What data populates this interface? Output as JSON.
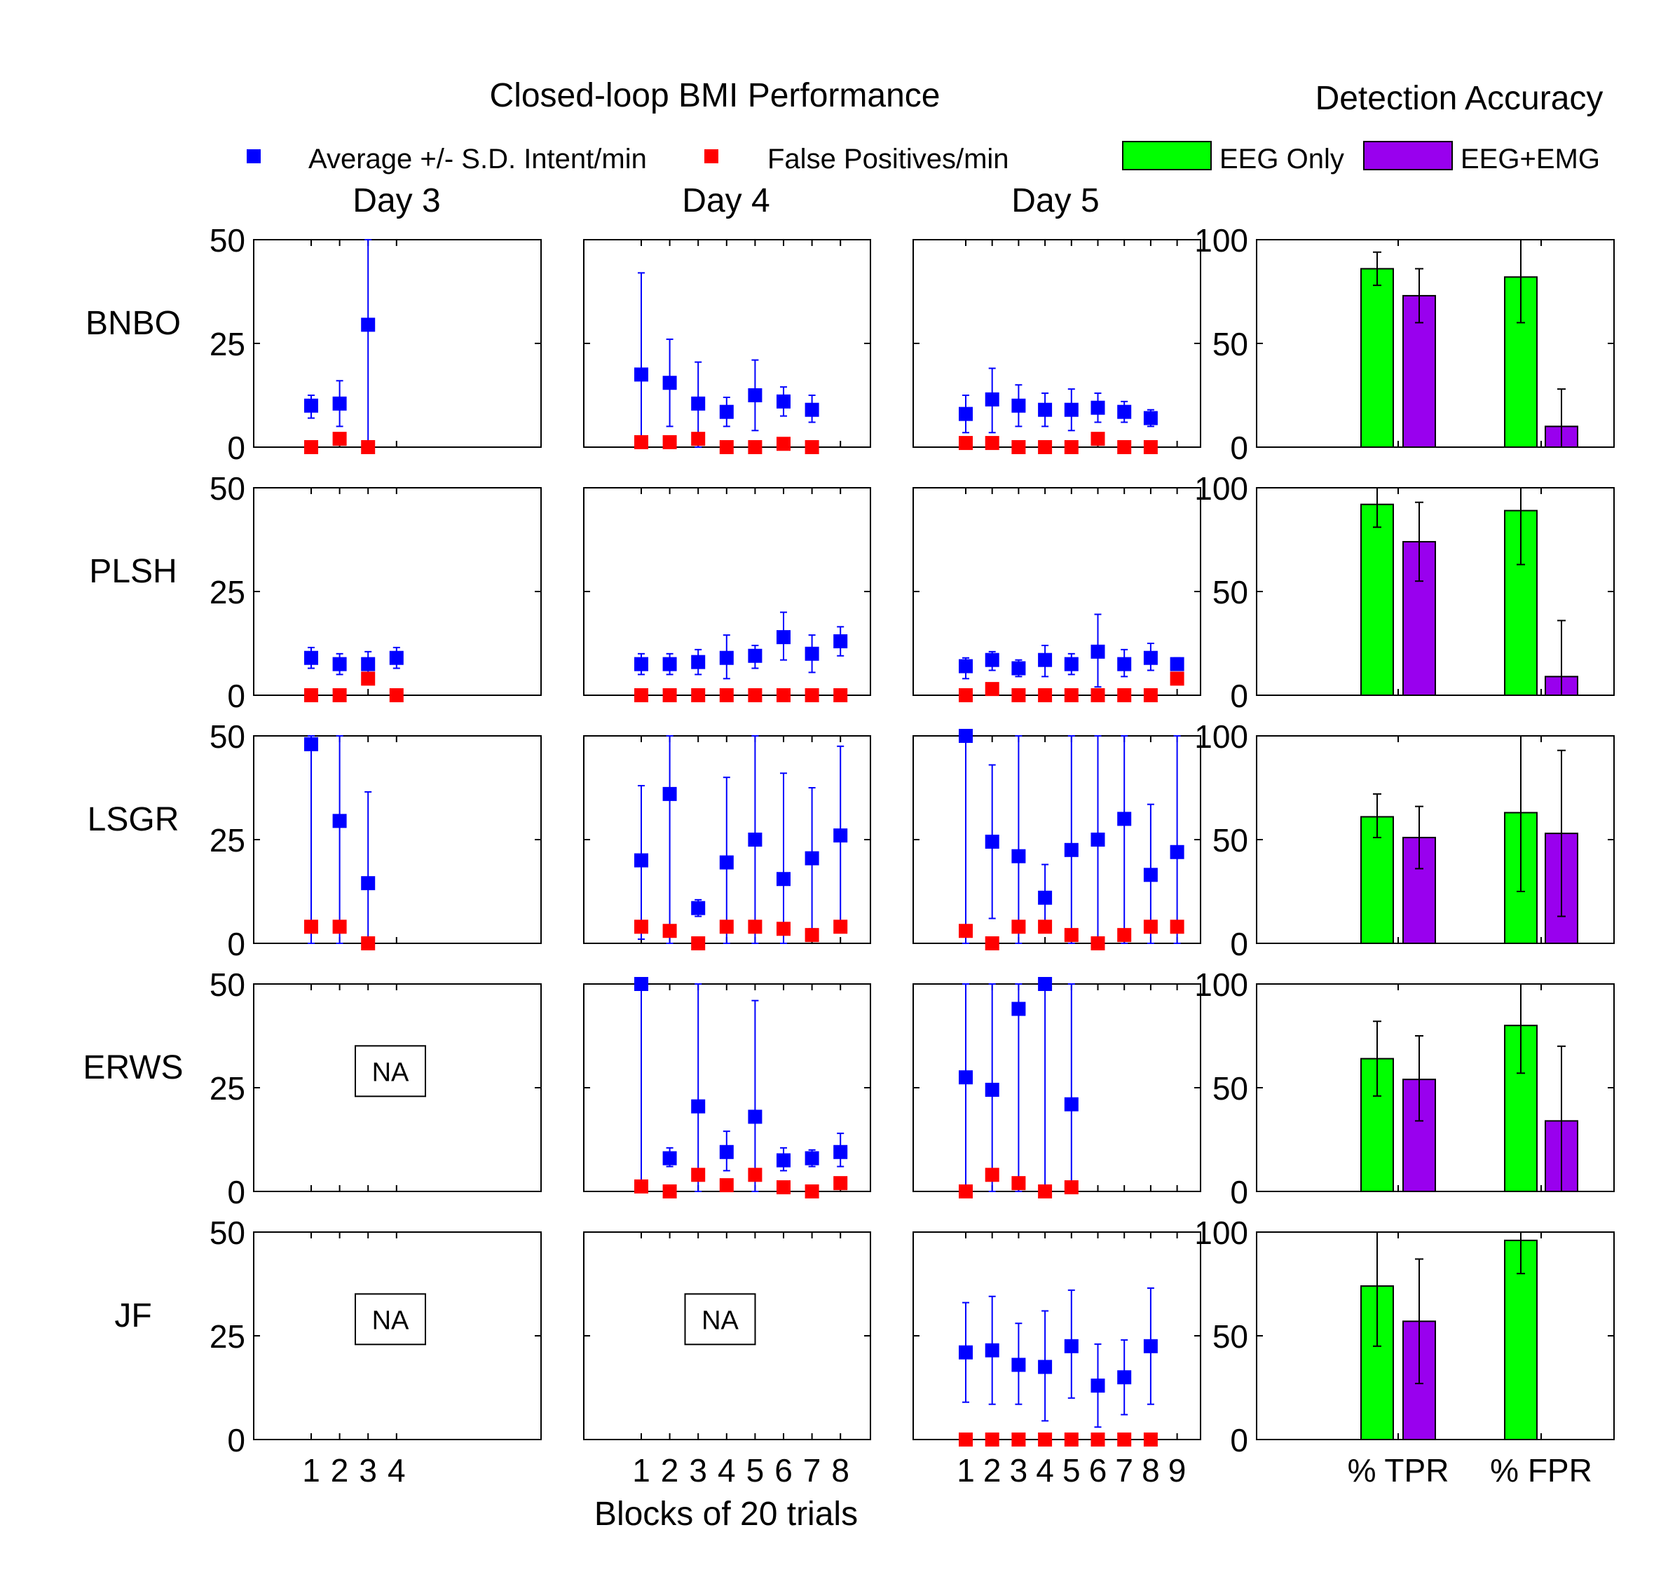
{
  "chart_data": {
    "type": "scatter",
    "title": "Closed-loop BMI Performance",
    "right_title": "Detection Accuracy",
    "legend": {
      "intent": {
        "label": "Average +/- S.D. Intent/min",
        "color": "#0000ff"
      },
      "fp": {
        "label": "False Positives/min",
        "color": "#ff0000"
      },
      "eeg": {
        "label": "EEG Only",
        "color": "#00ff00"
      },
      "eegemg": {
        "label": "EEG+EMG",
        "color": "#9900ee"
      }
    },
    "days": [
      "Day 3",
      "Day 4",
      "Day 5"
    ],
    "subjects": [
      "BNBO",
      "PLSH",
      "LSGR",
      "ERWS",
      "JF"
    ],
    "ylim": [
      0,
      50
    ],
    "yticks": [
      0,
      25,
      50
    ],
    "acc_ylim": [
      0,
      100
    ],
    "acc_yticks": [
      0,
      50,
      100
    ],
    "xlabel": "Blocks of 20 trials",
    "xtick_labels": [
      [
        "1",
        "2",
        "3",
        "4"
      ],
      [
        "1",
        "2",
        "3",
        "4",
        "5",
        "6",
        "7",
        "8"
      ],
      [
        "1",
        "2",
        "3",
        "4",
        "5",
        "6",
        "7",
        "8",
        "9"
      ]
    ],
    "acc_categories": [
      "% TPR",
      "% FPR"
    ],
    "na_label": "NA",
    "panels": [
      [
        {
          "na": false,
          "intent": [
            [
              1,
              10,
              7,
              12.5
            ],
            [
              2,
              10.5,
              5,
              16
            ],
            [
              3,
              29.5,
              0,
              50
            ]
          ],
          "fp": [
            [
              1,
              0
            ],
            [
              2,
              2
            ],
            [
              3,
              0
            ]
          ]
        },
        {
          "na": false,
          "intent": [
            [
              1,
              17.5,
              0,
              42
            ],
            [
              2,
              15.5,
              5,
              26
            ],
            [
              3,
              10.5,
              0,
              20.5
            ],
            [
              4,
              8.5,
              5,
              12
            ],
            [
              5,
              12.5,
              4,
              21
            ],
            [
              6,
              11,
              7.5,
              14.5
            ],
            [
              7,
              9,
              6,
              12.5
            ]
          ],
          "fp": [
            [
              1,
              1.2
            ],
            [
              2,
              1.2
            ],
            [
              3,
              2
            ],
            [
              4,
              0
            ],
            [
              5,
              0
            ],
            [
              6,
              0.8
            ],
            [
              7,
              0
            ]
          ]
        },
        {
          "na": false,
          "intent": [
            [
              1,
              8,
              3.5,
              12.5
            ],
            [
              2,
              11.5,
              3.5,
              19
            ],
            [
              3,
              10,
              5,
              15
            ],
            [
              4,
              9,
              5,
              13
            ],
            [
              5,
              9,
              4,
              14
            ],
            [
              6,
              9.5,
              6,
              13
            ],
            [
              7,
              8.5,
              6,
              11
            ],
            [
              8,
              7,
              5,
              9
            ]
          ],
          "fp": [
            [
              1,
              1
            ],
            [
              2,
              1
            ],
            [
              3,
              0
            ],
            [
              4,
              0
            ],
            [
              5,
              0
            ],
            [
              6,
              2
            ],
            [
              7,
              0
            ],
            [
              8,
              0
            ]
          ]
        },
        {
          "tpr_eeg": [
            86,
            94,
            78
          ],
          "tpr_eegemg": [
            73,
            86,
            60
          ],
          "fpr_eeg": [
            82,
            100,
            60
          ],
          "fpr_eegemg": [
            10,
            28,
            0
          ]
        }
      ],
      [
        {
          "na": false,
          "intent": [
            [
              1,
              9,
              6.5,
              11.5
            ],
            [
              2,
              7.5,
              5,
              10
            ],
            [
              3,
              7.5,
              4.5,
              10.5
            ],
            [
              4,
              9,
              6.5,
              11.5
            ]
          ],
          "fp": [
            [
              1,
              0
            ],
            [
              2,
              0
            ],
            [
              3,
              4
            ],
            [
              4,
              0
            ]
          ]
        },
        {
          "na": false,
          "intent": [
            [
              1,
              7.5,
              5,
              10
            ],
            [
              2,
              7.5,
              5,
              10
            ],
            [
              3,
              8,
              5,
              11
            ],
            [
              4,
              9,
              4,
              14.5
            ],
            [
              5,
              9.5,
              6.5,
              12
            ],
            [
              6,
              14,
              8.5,
              20
            ],
            [
              7,
              10,
              5.5,
              14.5
            ],
            [
              8,
              13,
              9.5,
              16.5
            ]
          ],
          "fp": [
            [
              1,
              0
            ],
            [
              2,
              0
            ],
            [
              3,
              0
            ],
            [
              4,
              0
            ],
            [
              5,
              0
            ],
            [
              6,
              0
            ],
            [
              7,
              0
            ],
            [
              8,
              0
            ]
          ]
        },
        {
          "na": false,
          "intent": [
            [
              1,
              7,
              4,
              9
            ],
            [
              2,
              8.5,
              6,
              10.5
            ],
            [
              3,
              6.5,
              4.5,
              8.5
            ],
            [
              4,
              8.5,
              4.5,
              12
            ],
            [
              5,
              7.5,
              5,
              10
            ],
            [
              6,
              10.5,
              2,
              19.5
            ],
            [
              7,
              7.5,
              4.5,
              11
            ],
            [
              8,
              9,
              6,
              12.5
            ],
            [
              9,
              7.5,
              6,
              9
            ]
          ],
          "fp": [
            [
              1,
              0
            ],
            [
              2,
              1.5
            ],
            [
              3,
              0
            ],
            [
              4,
              0
            ],
            [
              5,
              0
            ],
            [
              6,
              0
            ],
            [
              7,
              0
            ],
            [
              8,
              0
            ],
            [
              9,
              4
            ]
          ]
        },
        {
          "tpr_eeg": [
            92,
            100,
            81
          ],
          "tpr_eegemg": [
            74,
            93,
            55
          ],
          "fpr_eeg": [
            89,
            100,
            63
          ],
          "fpr_eegemg": [
            9,
            36,
            0
          ]
        }
      ],
      [
        {
          "na": false,
          "intent": [
            [
              1,
              48,
              0,
              50
            ],
            [
              2,
              29.5,
              0,
              50
            ],
            [
              3,
              14.5,
              0,
              36.5
            ]
          ],
          "fp": [
            [
              1,
              4
            ],
            [
              2,
              4
            ],
            [
              3,
              0
            ]
          ]
        },
        {
          "na": false,
          "intent": [
            [
              1,
              20,
              1,
              38
            ],
            [
              2,
              36,
              0,
              50
            ],
            [
              3,
              8.5,
              6.5,
              10.5
            ],
            [
              4,
              19.5,
              0,
              40
            ],
            [
              5,
              25,
              0,
              50
            ],
            [
              6,
              15.5,
              0,
              41
            ],
            [
              7,
              20.5,
              3.5,
              37.5
            ],
            [
              8,
              26,
              4,
              47.5
            ]
          ],
          "fp": [
            [
              1,
              4
            ],
            [
              2,
              3
            ],
            [
              3,
              0
            ],
            [
              4,
              4
            ],
            [
              5,
              4
            ],
            [
              6,
              3.5
            ],
            [
              7,
              2
            ],
            [
              8,
              4
            ]
          ]
        },
        {
          "na": false,
          "intent": [
            [
              1,
              50,
              0,
              50
            ],
            [
              2,
              24.5,
              6,
              43
            ],
            [
              3,
              21,
              0,
              50
            ],
            [
              4,
              11,
              3,
              19
            ],
            [
              5,
              22.5,
              0,
              50
            ],
            [
              6,
              25,
              0,
              50
            ],
            [
              7,
              30,
              0,
              50
            ],
            [
              8,
              16.5,
              0,
              33.5
            ],
            [
              9,
              22,
              0,
              50
            ]
          ],
          "fp": [
            [
              1,
              3
            ],
            [
              2,
              0
            ],
            [
              3,
              4
            ],
            [
              4,
              4
            ],
            [
              5,
              2
            ],
            [
              6,
              0
            ],
            [
              7,
              2
            ],
            [
              8,
              4
            ],
            [
              9,
              4
            ]
          ]
        },
        {
          "tpr_eeg": [
            61,
            72,
            51
          ],
          "tpr_eegemg": [
            51,
            66,
            36
          ],
          "fpr_eeg": [
            63,
            100,
            25
          ],
          "fpr_eegemg": [
            53,
            93,
            13
          ]
        }
      ],
      [
        {
          "na": true,
          "intent": [],
          "fp": []
        },
        {
          "na": false,
          "intent": [
            [
              1,
              50,
              0,
              50
            ],
            [
              2,
              8,
              6,
              10.5
            ],
            [
              3,
              20.5,
              0,
              50
            ],
            [
              4,
              9.5,
              5,
              14.5
            ],
            [
              5,
              18,
              0,
              46
            ],
            [
              6,
              7.5,
              5,
              10.5
            ],
            [
              7,
              8,
              6,
              10
            ],
            [
              8,
              9.5,
              6,
              14
            ]
          ],
          "fp": [
            [
              1,
              1.2
            ],
            [
              2,
              0
            ],
            [
              3,
              4
            ],
            [
              4,
              1.5
            ],
            [
              5,
              4
            ],
            [
              6,
              1
            ],
            [
              7,
              0
            ],
            [
              8,
              2
            ]
          ]
        },
        {
          "na": false,
          "intent": [
            [
              1,
              27.5,
              0,
              50
            ],
            [
              2,
              24.5,
              0,
              50
            ],
            [
              3,
              44,
              0,
              50
            ],
            [
              4,
              50,
              0,
              50
            ],
            [
              5,
              21,
              0,
              50
            ]
          ],
          "fp": [
            [
              1,
              0
            ],
            [
              2,
              4
            ],
            [
              3,
              2
            ],
            [
              4,
              0
            ],
            [
              5,
              1
            ]
          ]
        },
        {
          "tpr_eeg": [
            64,
            82,
            46
          ],
          "tpr_eegemg": [
            54,
            75,
            34
          ],
          "fpr_eeg": [
            80,
            100,
            57
          ],
          "fpr_eegemg": [
            34,
            70,
            0
          ]
        }
      ],
      [
        {
          "na": true,
          "intent": [],
          "fp": []
        },
        {
          "na": true,
          "intent": [],
          "fp": []
        },
        {
          "na": false,
          "intent": [
            [
              1,
              21,
              9,
              33
            ],
            [
              2,
              21.5,
              8.5,
              34.5
            ],
            [
              3,
              18,
              8.5,
              28
            ],
            [
              4,
              17.5,
              4.5,
              31
            ],
            [
              5,
              22.5,
              10,
              36
            ],
            [
              6,
              13,
              3,
              23
            ],
            [
              7,
              15,
              6,
              24
            ],
            [
              8,
              22.5,
              8.5,
              36.5
            ]
          ],
          "fp": [
            [
              1,
              0
            ],
            [
              2,
              0
            ],
            [
              3,
              0
            ],
            [
              4,
              0
            ],
            [
              5,
              0
            ],
            [
              6,
              0
            ],
            [
              7,
              0
            ],
            [
              8,
              0
            ]
          ]
        },
        {
          "tpr_eeg": [
            74,
            100,
            45
          ],
          "tpr_eegemg": [
            57,
            87,
            27
          ],
          "fpr_eeg": [
            96,
            100,
            80
          ],
          "fpr_eegemg": [
            0,
            0,
            0
          ]
        }
      ]
    ]
  }
}
